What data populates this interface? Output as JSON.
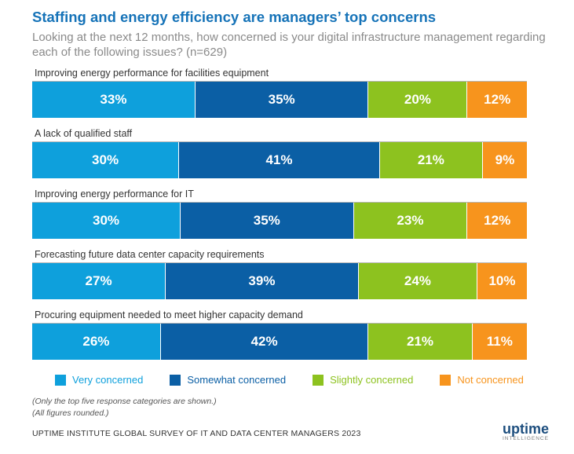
{
  "header": {
    "title": "Staffing and energy efficiency are managers’ top concerns",
    "subtitle": "Looking at the next 12 months, how concerned is your digital infrastructure management regarding each of the following issues? (n=629)"
  },
  "colors": {
    "very": "#0ea0dc",
    "somewhat": "#0b5fa5",
    "slightly": "#8dc21f",
    "not": "#f7941d"
  },
  "chart_data": {
    "type": "bar",
    "orientation": "horizontal-stacked-100",
    "categories": [
      "Improving energy performance for facilities equipment",
      "A lack of qualified staff",
      "Improving energy performance for IT",
      "Forecasting future data center capacity requirements",
      "Procuring equipment needed to meet higher capacity demand"
    ],
    "series": [
      {
        "name": "Very concerned",
        "key": "very",
        "values": [
          33,
          30,
          30,
          27,
          26
        ]
      },
      {
        "name": "Somewhat concerned",
        "key": "somewhat",
        "values": [
          35,
          41,
          35,
          39,
          42
        ]
      },
      {
        "name": "Slightly concerned",
        "key": "slightly",
        "values": [
          20,
          21,
          23,
          24,
          21
        ]
      },
      {
        "name": "Not concerned",
        "key": "not",
        "values": [
          12,
          9,
          12,
          10,
          11
        ]
      }
    ],
    "value_suffix": "%",
    "xlim": [
      0,
      100
    ],
    "legend_position": "bottom"
  },
  "notes": [
    "(Only the top five response categories are shown.)",
    "(All figures rounded.)"
  ],
  "footer": {
    "source": "UPTIME INSTITUTE GLOBAL SURVEY OF IT AND DATA CENTER MANAGERS 2023",
    "logo_text": "uptime",
    "logo_sub": "INTELLIGENCE"
  }
}
